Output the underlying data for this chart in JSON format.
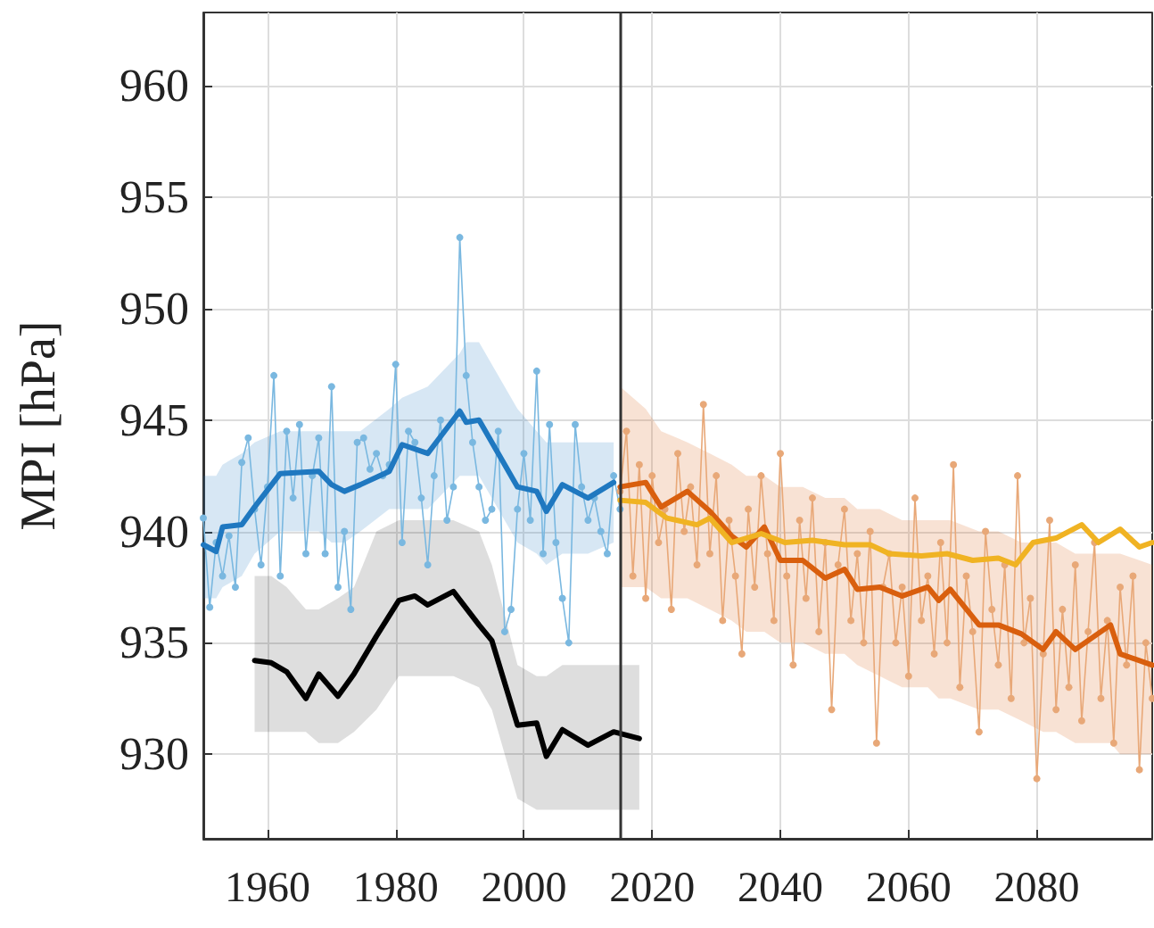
{
  "chart_data": {
    "type": "line",
    "ylabel": "MPI [hPa]",
    "xlim": [
      1950,
      2098
    ],
    "xticks": [
      1960,
      1980,
      2000,
      2020,
      2040,
      2060,
      2080
    ],
    "ylim": [
      926.2,
      963.3
    ],
    "yticks": [
      930,
      935,
      940,
      945,
      950,
      955,
      960
    ],
    "grid": true,
    "line_style": "solid",
    "ref_lines": [
      {
        "axis": "x",
        "value": 2015,
        "color": "#333333"
      }
    ],
    "series": [
      {
        "color": "#7ab8e0",
        "marker": "circle",
        "x": [
          1950,
          1951,
          1952,
          1953,
          1954,
          1955,
          1956,
          1957,
          1958,
          1959,
          1960,
          1961,
          1962,
          1963,
          1964,
          1965,
          1966,
          1967,
          1968,
          1969,
          1970,
          1971,
          1972,
          1973,
          1974,
          1975,
          1976,
          1977,
          1978,
          1979,
          1980,
          1981,
          1982,
          1983,
          1984,
          1985,
          1986,
          1987,
          1988,
          1989,
          1990,
          1991,
          1992,
          1993,
          1994,
          1995,
          1996,
          1997,
          1998,
          1999,
          2000,
          2001,
          2002,
          2003,
          2004,
          2005,
          2006,
          2007,
          2008,
          2009,
          2010,
          2011,
          2012,
          2013,
          2014,
          2015
        ],
        "values": [
          940.6,
          936.6,
          939.5,
          938.0,
          939.8,
          937.5,
          943.1,
          944.2,
          941.0,
          938.5,
          942.0,
          947.0,
          938.0,
          944.5,
          941.5,
          944.8,
          939.0,
          942.5,
          944.2,
          939.0,
          946.5,
          937.5,
          940.0,
          936.5,
          944.0,
          944.2,
          942.8,
          943.5,
          942.5,
          943.0,
          947.5,
          939.5,
          944.5,
          944.0,
          941.5,
          938.5,
          942.5,
          945.0,
          940.5,
          942.0,
          953.2,
          947.0,
          944.0,
          942.0,
          940.5,
          941.0,
          944.5,
          935.5,
          936.5,
          941.0,
          943.5,
          940.5,
          947.2,
          939.0,
          944.8,
          939.5,
          937.0,
          935.0,
          944.8,
          942.0,
          940.5,
          941.5,
          940.0,
          939.0,
          942.5,
          941.0
        ]
      },
      {
        "color": "#e8a878",
        "marker": "circle",
        "x": [
          2015,
          2016,
          2017,
          2018,
          2019,
          2020,
          2021,
          2022,
          2023,
          2024,
          2025,
          2026,
          2027,
          2028,
          2029,
          2030,
          2031,
          2032,
          2033,
          2034,
          2035,
          2036,
          2037,
          2038,
          2039,
          2040,
          2041,
          2042,
          2043,
          2044,
          2045,
          2046,
          2047,
          2048,
          2049,
          2050,
          2051,
          2052,
          2053,
          2054,
          2055,
          2056,
          2057,
          2058,
          2059,
          2060,
          2061,
          2062,
          2063,
          2064,
          2065,
          2066,
          2067,
          2068,
          2069,
          2070,
          2071,
          2072,
          2073,
          2074,
          2075,
          2076,
          2077,
          2078,
          2079,
          2080,
          2081,
          2082,
          2083,
          2084,
          2085,
          2086,
          2087,
          2088,
          2089,
          2090,
          2091,
          2092,
          2093,
          2094,
          2095,
          2096,
          2097,
          2098
        ],
        "values": [
          941.8,
          944.5,
          938.0,
          943.0,
          937.0,
          942.5,
          939.5,
          941.0,
          936.5,
          943.5,
          940.0,
          942.0,
          938.5,
          945.7,
          939.0,
          942.5,
          936.0,
          940.5,
          938.0,
          934.5,
          941.0,
          937.5,
          942.5,
          939.0,
          936.0,
          943.5,
          938.0,
          934.0,
          940.5,
          937.0,
          941.5,
          935.5,
          939.5,
          932.0,
          938.5,
          941.0,
          936.0,
          939.0,
          935.0,
          940.0,
          930.5,
          937.5,
          939.0,
          935.0,
          937.5,
          933.5,
          941.5,
          936.0,
          938.0,
          934.5,
          939.5,
          935.0,
          943.0,
          933.0,
          938.0,
          935.5,
          931.0,
          940.0,
          936.5,
          934.0,
          938.5,
          932.5,
          942.5,
          935.0,
          937.0,
          928.9,
          934.5,
          940.5,
          932.0,
          936.5,
          933.0,
          938.5,
          931.5,
          935.5,
          939.5,
          932.5,
          936.0,
          930.5,
          937.5,
          934.0,
          938.0,
          929.3,
          935.0,
          932.5
        ]
      },
      {
        "color": "#1f78c0",
        "marker": "none",
        "x": [
          1950,
          1952,
          1953,
          1956,
          1958,
          1962,
          1968,
          1970,
          1972,
          1974.5,
          1979,
          1981,
          1985,
          1990,
          1991,
          1993,
          1999,
          2002,
          2003.5,
          2006,
          2010,
          2014
        ],
        "values": [
          939.4,
          939.1,
          940.2,
          940.3,
          941.1,
          942.6,
          942.7,
          942.1,
          941.8,
          942.1,
          942.7,
          943.9,
          943.5,
          945.4,
          944.9,
          945.0,
          942.0,
          941.8,
          940.9,
          942.1,
          941.5,
          942.2
        ],
        "upper": [
          942.5,
          942.5,
          943,
          943.5,
          944,
          944.5,
          944.5,
          944.5,
          944.5,
          944.5,
          945.5,
          946,
          946.5,
          948,
          948.5,
          948.5,
          945.5,
          944.5,
          944,
          944,
          944,
          944
        ],
        "lower": [
          937,
          937,
          937.5,
          938,
          939,
          940,
          940,
          939.5,
          939.5,
          940,
          941,
          941,
          941,
          942.5,
          942.5,
          942.5,
          939.5,
          939,
          938.5,
          939,
          939,
          939.5
        ]
      },
      {
        "color": "#000000",
        "marker": "none",
        "x": [
          1958,
          1960.6,
          1963,
          1966,
          1968,
          1971,
          1973.5,
          1977,
          1980.5,
          1983,
          1985,
          1989,
          1993,
          1995,
          1999,
          2002,
          2003.5,
          2006,
          2010,
          2014,
          2018
        ],
        "values": [
          934.2,
          934.1,
          933.7,
          932.5,
          933.6,
          932.6,
          933.6,
          935.3,
          936.9,
          937.1,
          936.7,
          937.3,
          935.8,
          935.1,
          931.3,
          931.4,
          929.9,
          931.1,
          930.4,
          931.0,
          930.7
        ],
        "upper": [
          938,
          938,
          937.5,
          936.5,
          936.5,
          937,
          937.5,
          940,
          940.5,
          940.5,
          940.5,
          940.5,
          940,
          938.5,
          934,
          933.5,
          933.5,
          934,
          934,
          934,
          934
        ],
        "lower": [
          931,
          931,
          931,
          931,
          930.5,
          930.5,
          931,
          932,
          933.5,
          933.5,
          933.5,
          933.5,
          933,
          932,
          928,
          927.5,
          927.5,
          927.5,
          927.5,
          927.5,
          927.5
        ]
      },
      {
        "color": "#d95f0e",
        "marker": "none",
        "x": [
          2015,
          2019,
          2021.4,
          2025.5,
          2029,
          2032.4,
          2034.7,
          2037.5,
          2040,
          2043.5,
          2047,
          2050,
          2052,
          2055.5,
          2059,
          2063,
          2064.7,
          2066.5,
          2071,
          2074,
          2077.6,
          2081,
          2083,
          2086,
          2091.5,
          2093,
          2098
        ],
        "values": [
          942.0,
          942.2,
          941.1,
          941.8,
          940.9,
          939.8,
          939.3,
          940.2,
          938.7,
          938.7,
          937.9,
          938.3,
          937.4,
          937.5,
          937.1,
          937.5,
          936.9,
          937.4,
          935.8,
          935.8,
          935.4,
          934.7,
          935.5,
          934.7,
          935.8,
          934.5,
          934.0
        ],
        "upper": [
          946.5,
          945.5,
          944.5,
          944,
          943.5,
          943,
          942.5,
          942.5,
          942,
          942,
          941.5,
          941.5,
          941,
          941,
          940.5,
          940.5,
          940.5,
          940.5,
          940,
          940,
          939.5,
          939.5,
          939.5,
          939,
          939,
          939,
          938.5
        ],
        "lower": [
          937.5,
          937.5,
          937,
          937,
          936.5,
          936,
          935.5,
          935.5,
          935,
          935,
          934.5,
          934.5,
          934,
          933.5,
          933,
          933,
          932.5,
          932.5,
          932,
          932,
          931.5,
          931,
          931,
          930.5,
          930.5,
          930,
          930
        ]
      },
      {
        "color": "#f0b323",
        "marker": "none",
        "x": [
          2015,
          2019,
          2022.3,
          2027,
          2029,
          2032.4,
          2037,
          2040.7,
          2045,
          2050,
          2054,
          2057,
          2062,
          2066,
          2070,
          2074,
          2076.7,
          2079.4,
          2083,
          2087,
          2089.6,
          2093,
          2096,
          2098
        ],
        "values": [
          941.4,
          941.3,
          940.6,
          940.3,
          940.6,
          939.5,
          939.9,
          939.5,
          939.6,
          939.4,
          939.4,
          939.0,
          938.9,
          939.0,
          938.7,
          938.8,
          938.5,
          939.5,
          939.7,
          940.3,
          939.5,
          940.1,
          939.3,
          939.5
        ]
      }
    ]
  }
}
